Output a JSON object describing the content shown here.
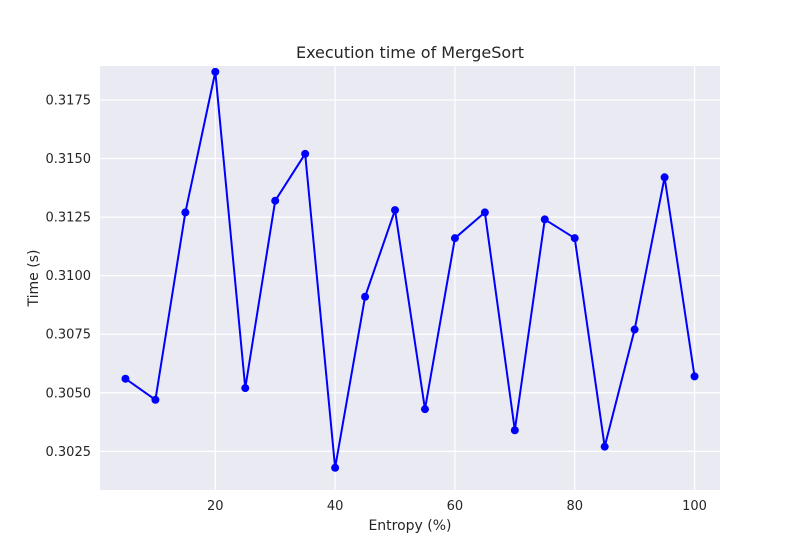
{
  "chart_data": {
    "type": "line",
    "title": "Execution time of MergeSort",
    "xlabel": "Entropy (%)",
    "ylabel": "Time (s)",
    "xlim": [
      0.75,
      104.25
    ],
    "ylim": [
      0.30085,
      0.31895
    ],
    "xticks": [
      20,
      40,
      60,
      80,
      100
    ],
    "xtick_labels": [
      "20",
      "40",
      "60",
      "80",
      "100"
    ],
    "yticks": [
      0.3025,
      0.305,
      0.3075,
      0.31,
      0.3125,
      0.315,
      0.3175
    ],
    "ytick_labels": [
      "0.3025",
      "0.3050",
      "0.3075",
      "0.3100",
      "0.3125",
      "0.3150",
      "0.3175"
    ],
    "grid": true,
    "series": [
      {
        "color": "#0000ff",
        "marker": "circle",
        "x": [
          5,
          10,
          15,
          20,
          25,
          30,
          35,
          40,
          45,
          50,
          55,
          60,
          65,
          70,
          75,
          80,
          85,
          90,
          95,
          100
        ],
        "y": [
          0.3056,
          0.3047,
          0.3127,
          0.3187,
          0.3052,
          0.3132,
          0.3152,
          0.3018,
          0.3091,
          0.3128,
          0.3043,
          0.3116,
          0.3127,
          0.3034,
          0.3124,
          0.3116,
          0.3027,
          0.3077,
          0.3142,
          0.3057
        ]
      }
    ],
    "colors": {
      "plot_background": "#eaeaf2",
      "grid": "#ffffff",
      "text": "#262626"
    }
  }
}
